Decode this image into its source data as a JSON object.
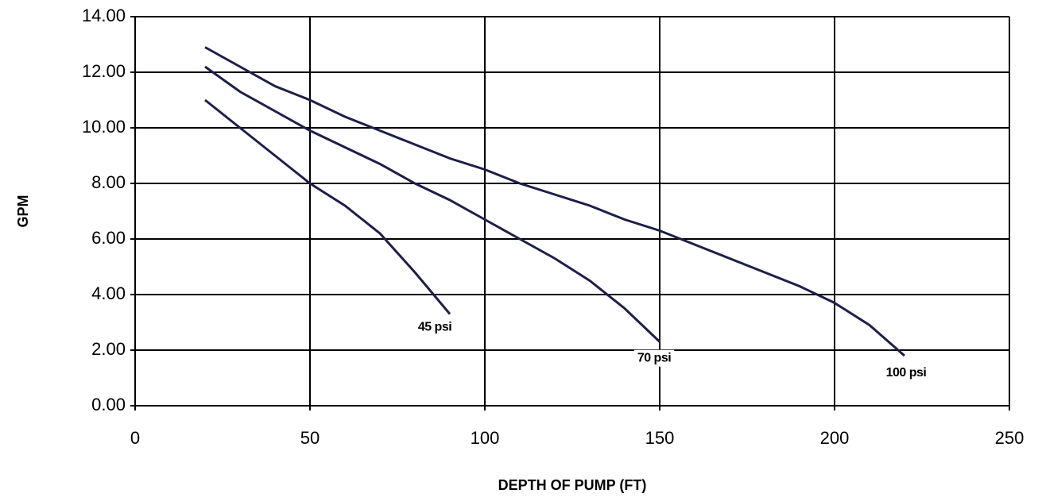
{
  "chart_data": {
    "type": "line",
    "xlabel": "DEPTH OF PUMP (FT)",
    "ylabel": "GPM",
    "xlim": [
      0,
      250
    ],
    "xticks": [
      0,
      50,
      100,
      150,
      200,
      250
    ],
    "ylim": [
      0,
      14
    ],
    "yticks": [
      {
        "value": 0,
        "label": "0.00"
      },
      {
        "value": 2,
        "label": "2.00"
      },
      {
        "value": 4,
        "label": "4.00"
      },
      {
        "value": 6,
        "label": "6.00"
      },
      {
        "value": 8,
        "label": "8.00"
      },
      {
        "value": 10,
        "label": "10.00"
      },
      {
        "value": 12,
        "label": "12.00"
      },
      {
        "value": 14,
        "label": "14.00"
      }
    ],
    "grid": true,
    "series": [
      {
        "name": "45 psi",
        "color": "#1e1e4a",
        "x": [
          20,
          30,
          40,
          50,
          60,
          70,
          80,
          90
        ],
        "values": [
          11.0,
          10.0,
          9.0,
          8.0,
          7.2,
          6.2,
          4.8,
          3.3
        ]
      },
      {
        "name": "70 psi",
        "color": "#1e1e4a",
        "x": [
          20,
          30,
          40,
          50,
          60,
          70,
          80,
          90,
          100,
          110,
          120,
          130,
          140,
          150
        ],
        "values": [
          12.2,
          11.3,
          10.6,
          9.9,
          9.3,
          8.7,
          8.0,
          7.4,
          6.7,
          6.0,
          5.3,
          4.5,
          3.5,
          2.3
        ]
      },
      {
        "name": "100 psi",
        "color": "#1e1e4a",
        "x": [
          20,
          30,
          40,
          50,
          60,
          70,
          80,
          90,
          100,
          110,
          120,
          130,
          140,
          150,
          160,
          170,
          180,
          190,
          200,
          210,
          220
        ],
        "values": [
          12.9,
          12.2,
          11.5,
          11.0,
          10.4,
          9.9,
          9.4,
          8.9,
          8.5,
          8.0,
          7.6,
          7.2,
          6.7,
          6.3,
          5.8,
          5.3,
          4.8,
          4.3,
          3.7,
          2.9,
          1.8
        ]
      }
    ]
  }
}
